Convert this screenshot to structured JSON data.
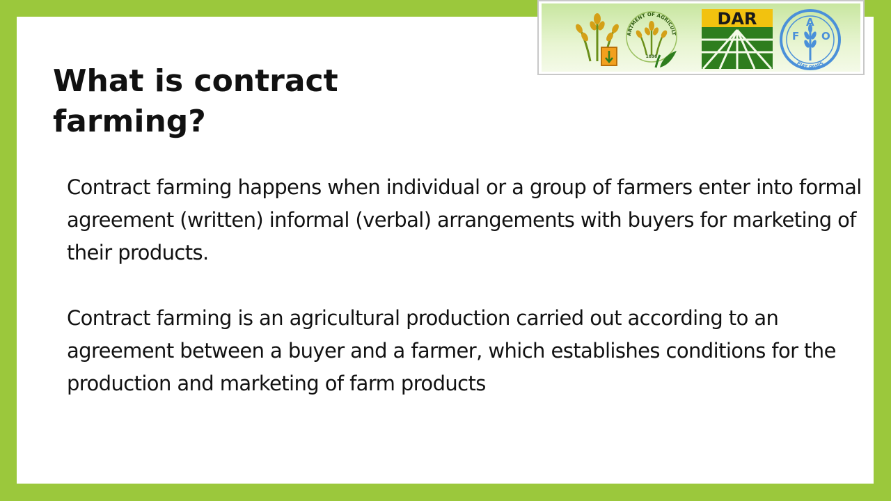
{
  "slide": {
    "title": "What is contract farming?",
    "paragraphs": [
      "Contract farming happens when individual or a group of farmers enter into formal agreement (written) informal (verbal) arrangements with buyers for marketing of their products.",
      "Contract farming is an agricultural production carried out according to an agreement between a buyer and a farmer, which establishes conditions for the production and marketing of farm products"
    ]
  },
  "logos": {
    "da_seal_text": "DEPARTMENT OF AGRICULTURE",
    "da_seal_year": "1898",
    "dar_text": "DAR",
    "fao_text": "FAO",
    "fao_motto": "FIAT PANIS"
  },
  "colors": {
    "frame_green": "#9bc83c",
    "dar_yellow": "#f2c20f",
    "dar_green": "#2e7d1e",
    "fao_blue": "#4a90d9"
  }
}
